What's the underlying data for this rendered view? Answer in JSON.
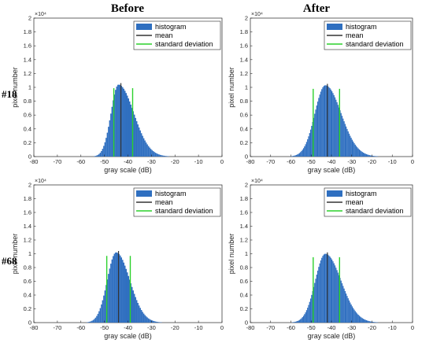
{
  "column_titles": [
    "Before",
    "After"
  ],
  "row_labels": [
    "#18",
    "#68"
  ],
  "colors": {
    "histogram": "#2f6fc0",
    "mean": "#333333",
    "std": "#2bd12b"
  },
  "chart_data": [
    {
      "type": "bar",
      "row_label": "#18",
      "column_title": "Before",
      "xlabel": "gray scale (dB)",
      "ylabel": "pixel number",
      "y_exponent_label": "×10⁴",
      "xlim": [
        -80,
        0
      ],
      "ylim": [
        0,
        20000
      ],
      "xticks": [
        "-80",
        "-70",
        "-60",
        "-50",
        "-40",
        "-30",
        "-20",
        "-10",
        "0"
      ],
      "yticks": [
        "0",
        "0.2",
        "0.4",
        "0.6",
        "0.8",
        "1",
        "1.2",
        "1.4",
        "1.6",
        "1.8",
        "2"
      ],
      "legend": [
        "histogram",
        "mean",
        "standard deviation"
      ],
      "legend_position": "top-right",
      "distribution": {
        "peak_x": -44,
        "peak_value": 10400,
        "sigma_left": 3.2,
        "sigma_right": 6.5
      },
      "mean": -43,
      "std_lines": [
        -46,
        -38
      ]
    },
    {
      "type": "bar",
      "row_label": "#18",
      "column_title": "After",
      "xlabel": "gray scale (dB)",
      "ylabel": "pixel number",
      "y_exponent_label": "×10⁴",
      "xlim": [
        -80,
        0
      ],
      "ylim": [
        0,
        20000
      ],
      "xticks": [
        "-80",
        "-70",
        "-60",
        "-50",
        "-40",
        "-30",
        "-20",
        "-10",
        "0"
      ],
      "yticks": [
        "0",
        "0.2",
        "0.4",
        "0.6",
        "0.8",
        "1",
        "1.2",
        "1.4",
        "1.6",
        "1.8",
        "2"
      ],
      "legend": [
        "histogram",
        "mean",
        "standard deviation"
      ],
      "legend_position": "top-right",
      "distribution": {
        "peak_x": -43,
        "peak_value": 10300,
        "sigma_left": 5.2,
        "sigma_right": 7.8
      },
      "mean": -42,
      "std_lines": [
        -49,
        -36
      ]
    },
    {
      "type": "bar",
      "row_label": "#68",
      "column_title": "Before",
      "xlabel": "gray scale (dB)",
      "ylabel": "pixel number",
      "y_exponent_label": "×10⁴",
      "xlim": [
        -80,
        0
      ],
      "ylim": [
        0,
        20000
      ],
      "xticks": [
        "-80",
        "-70",
        "-60",
        "-50",
        "-40",
        "-30",
        "-20",
        "-10",
        "0"
      ],
      "yticks": [
        "0",
        "0.2",
        "0.4",
        "0.6",
        "0.8",
        "1",
        "1.2",
        "1.4",
        "1.6",
        "1.8",
        "2"
      ],
      "legend": [
        "histogram",
        "mean",
        "standard deviation"
      ],
      "legend_position": "top-right",
      "distribution": {
        "peak_x": -45,
        "peak_value": 10200,
        "sigma_left": 3.8,
        "sigma_right": 5.8
      },
      "mean": -44,
      "std_lines": [
        -49,
        -39
      ]
    },
    {
      "type": "bar",
      "row_label": "#68",
      "column_title": "After",
      "xlabel": "gray scale (dB)",
      "ylabel": "pixel number",
      "y_exponent_label": "×10⁴",
      "xlim": [
        -80,
        0
      ],
      "ylim": [
        0,
        20000
      ],
      "xticks": [
        "-80",
        "-70",
        "-60",
        "-50",
        "-40",
        "-30",
        "-20",
        "-10",
        "0"
      ],
      "yticks": [
        "0",
        "0.2",
        "0.4",
        "0.6",
        "0.8",
        "1",
        "1.2",
        "1.4",
        "1.6",
        "1.8",
        "2"
      ],
      "legend": [
        "histogram",
        "mean",
        "standard deviation"
      ],
      "legend_position": "top-right",
      "distribution": {
        "peak_x": -43,
        "peak_value": 10000,
        "sigma_left": 5.0,
        "sigma_right": 7.8
      },
      "mean": -42,
      "std_lines": [
        -49,
        -36
      ]
    }
  ]
}
